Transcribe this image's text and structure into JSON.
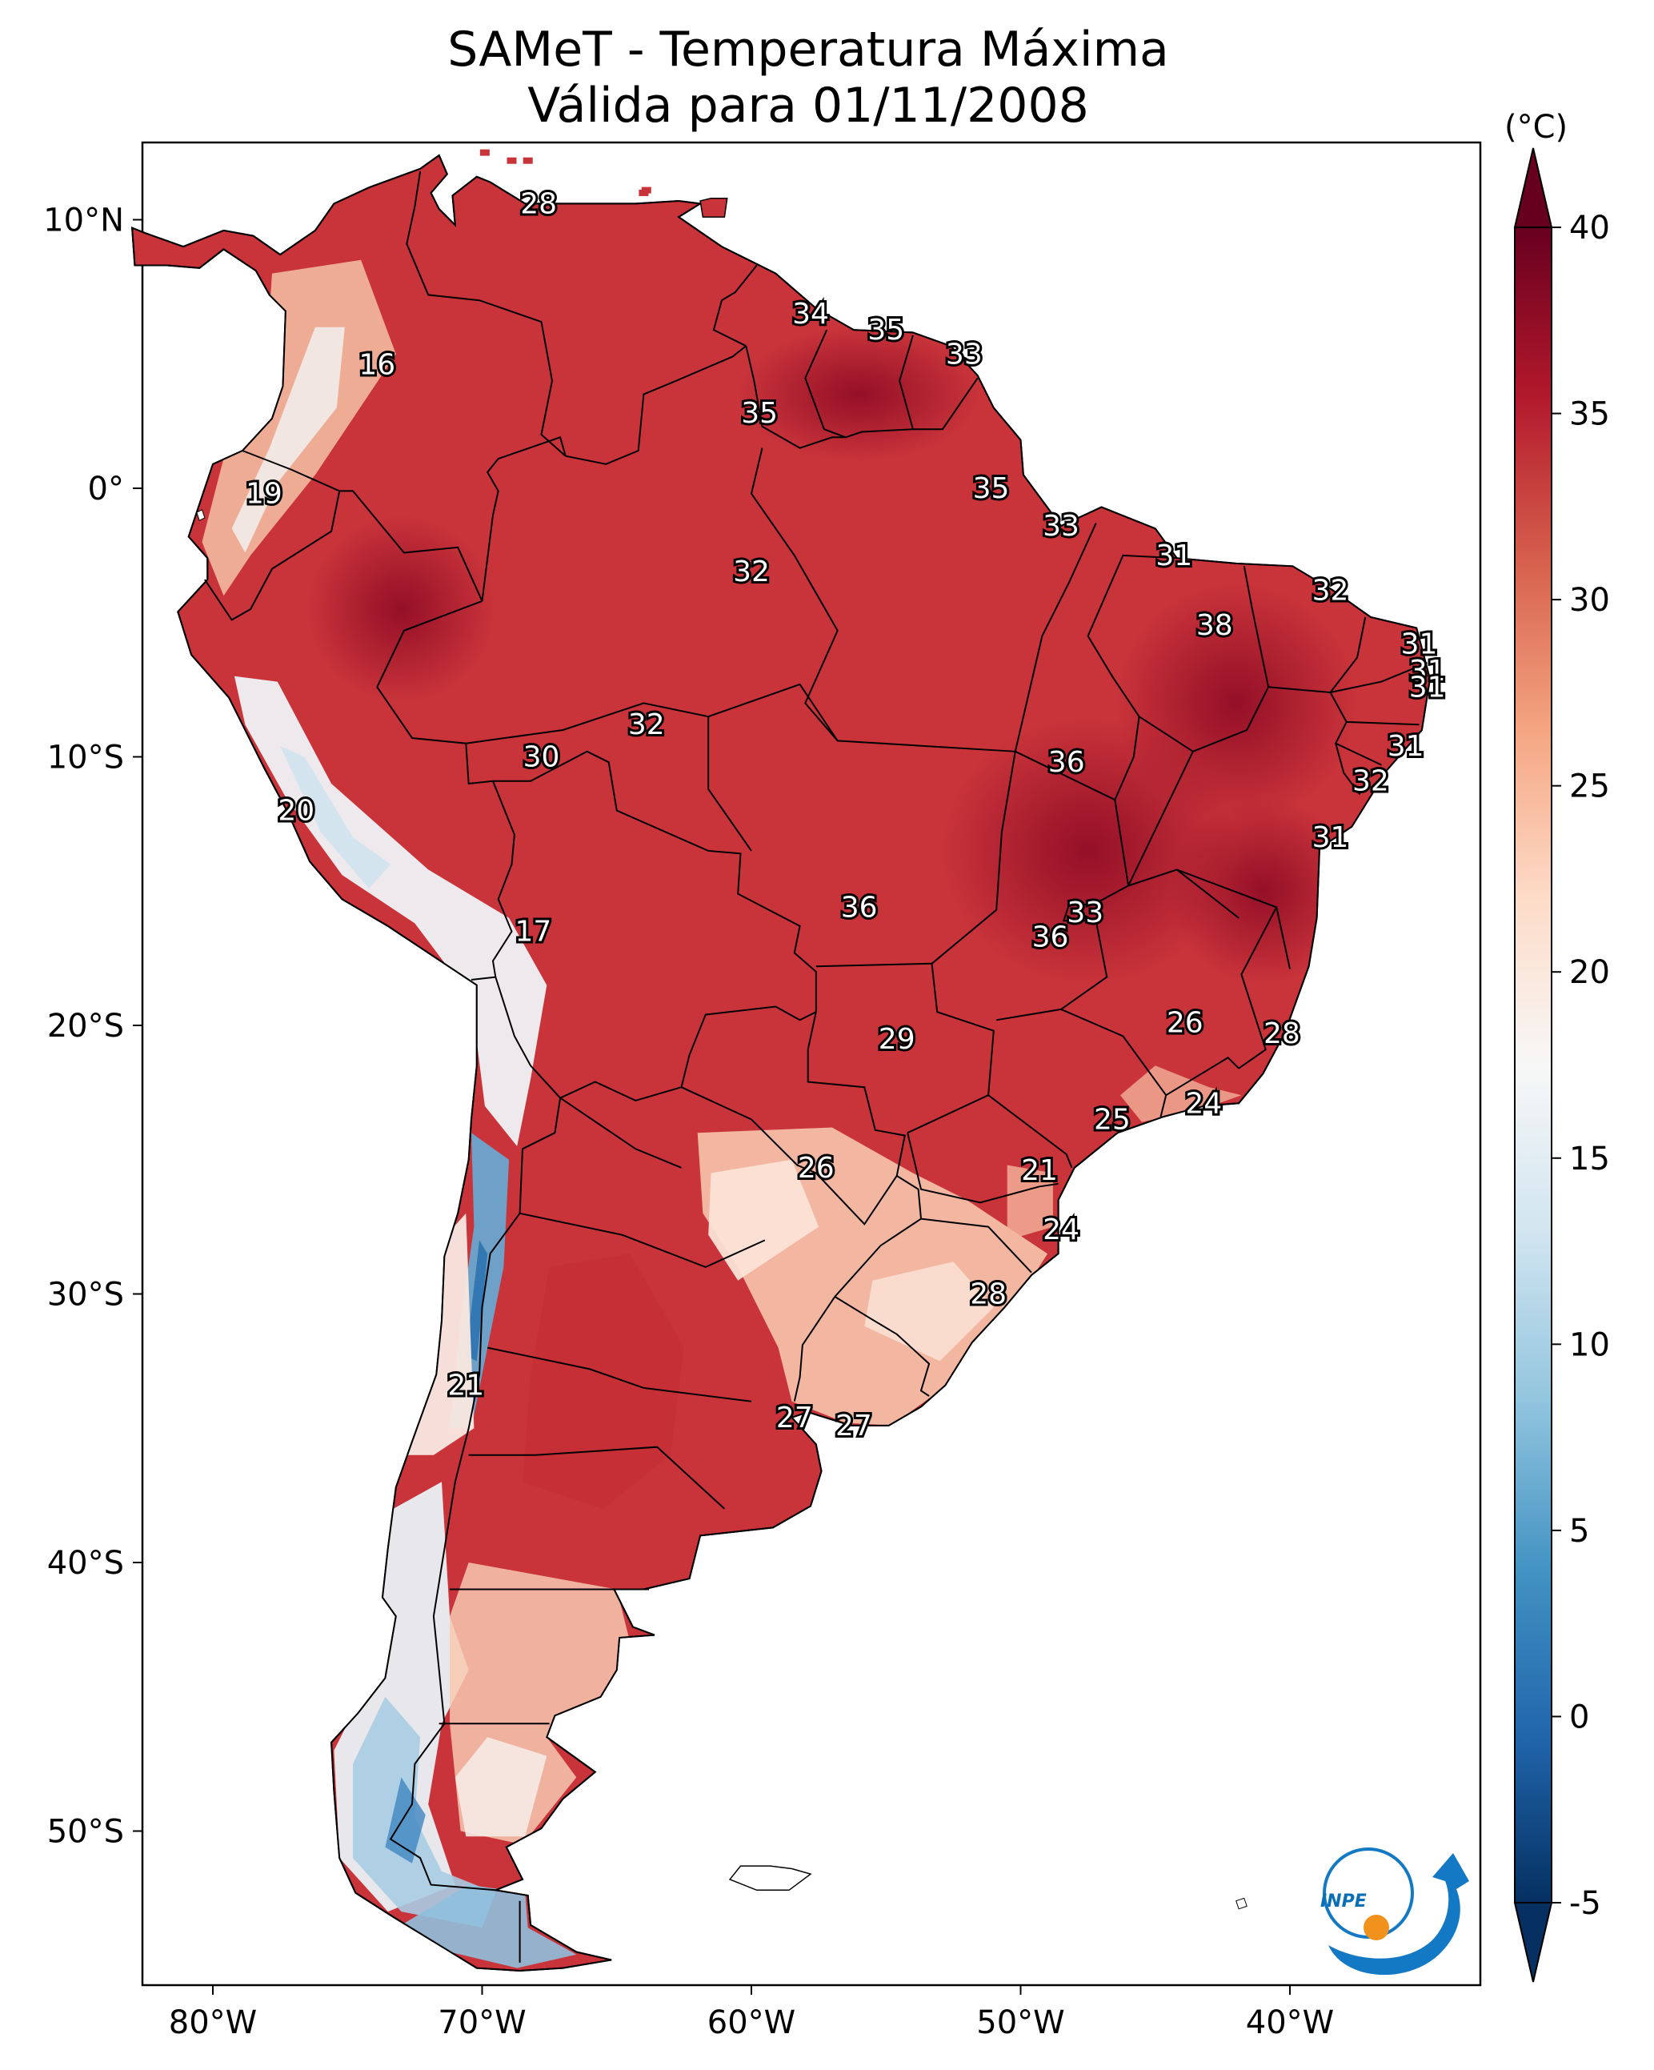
{
  "title": {
    "line1": "SAMeT - Temperatura Máxima",
    "line2": "Válida para 01/11/2008"
  },
  "axes": {
    "x_ticks": [
      {
        "lon": -80,
        "label": "80°W"
      },
      {
        "lon": -70,
        "label": "70°W"
      },
      {
        "lon": -60,
        "label": "60°W"
      },
      {
        "lon": -50,
        "label": "50°W"
      },
      {
        "lon": -40,
        "label": "40°W"
      }
    ],
    "y_ticks": [
      {
        "lat": 10,
        "label": "10°N"
      },
      {
        "lat": 0,
        "label": "0°"
      },
      {
        "lat": -10,
        "label": "10°S"
      },
      {
        "lat": -20,
        "label": "20°S"
      },
      {
        "lat": -30,
        "label": "30°S"
      },
      {
        "lat": -40,
        "label": "40°S"
      },
      {
        "lat": -50,
        "label": "50°S"
      }
    ],
    "lon_range": [
      -83,
      -33
    ],
    "lat_range": [
      -56,
      13
    ]
  },
  "colorbar": {
    "unit": "(°C)",
    "min": -5,
    "max": 40,
    "ticks": [
      {
        "value": 40,
        "label": "40"
      },
      {
        "value": 35,
        "label": "35"
      },
      {
        "value": 30,
        "label": "30"
      },
      {
        "value": 25,
        "label": "25"
      },
      {
        "value": 20,
        "label": "20"
      },
      {
        "value": 15,
        "label": "15"
      },
      {
        "value": 10,
        "label": "10"
      },
      {
        "value": 5,
        "label": "5"
      },
      {
        "value": 0,
        "label": "0"
      },
      {
        "value": -5,
        "label": "-5"
      }
    ],
    "colors": [
      "#053061",
      "#2166ac",
      "#4393c3",
      "#92c5de",
      "#d1e5f0",
      "#f7f7f7",
      "#fddbc7",
      "#f4a582",
      "#d6604d",
      "#b2182b",
      "#67001f"
    ]
  },
  "station_labels": [
    {
      "lon": -67.9,
      "lat": 10.6,
      "value": "28"
    },
    {
      "lon": -57.8,
      "lat": 6.5,
      "value": "34"
    },
    {
      "lon": -55.0,
      "lat": 5.9,
      "value": "35"
    },
    {
      "lon": -52.1,
      "lat": 5.0,
      "value": "33"
    },
    {
      "lon": -73.9,
      "lat": 4.6,
      "value": "16"
    },
    {
      "lon": -59.7,
      "lat": 2.8,
      "value": "35"
    },
    {
      "lon": -51.1,
      "lat": 0.0,
      "value": "35"
    },
    {
      "lon": -78.1,
      "lat": -0.2,
      "value": "19"
    },
    {
      "lon": -48.5,
      "lat": -1.4,
      "value": "33"
    },
    {
      "lon": -44.3,
      "lat": -2.5,
      "value": "31"
    },
    {
      "lon": -60.0,
      "lat": -3.1,
      "value": "32"
    },
    {
      "lon": -38.5,
      "lat": -3.8,
      "value": "32"
    },
    {
      "lon": -42.8,
      "lat": -5.1,
      "value": "38"
    },
    {
      "lon": -35.2,
      "lat": -5.8,
      "value": "31"
    },
    {
      "lon": -34.9,
      "lat": -6.8,
      "value": "31"
    },
    {
      "lon": -34.9,
      "lat": -7.4,
      "value": "31"
    },
    {
      "lon": -67.8,
      "lat": -10.0,
      "value": "30"
    },
    {
      "lon": -63.9,
      "lat": -8.8,
      "value": "32"
    },
    {
      "lon": -48.3,
      "lat": -10.2,
      "value": "36"
    },
    {
      "lon": -35.7,
      "lat": -9.6,
      "value": "31"
    },
    {
      "lon": -37.0,
      "lat": -10.9,
      "value": "32"
    },
    {
      "lon": -76.9,
      "lat": -12.0,
      "value": "20"
    },
    {
      "lon": -38.5,
      "lat": -13.0,
      "value": "31"
    },
    {
      "lon": -56.0,
      "lat": -15.6,
      "value": "36"
    },
    {
      "lon": -47.6,
      "lat": -15.8,
      "value": "33"
    },
    {
      "lon": -48.9,
      "lat": -16.7,
      "value": "36"
    },
    {
      "lon": -68.1,
      "lat": -16.5,
      "value": "17"
    },
    {
      "lon": -43.9,
      "lat": -19.9,
      "value": "26"
    },
    {
      "lon": -40.3,
      "lat": -20.3,
      "value": "28"
    },
    {
      "lon": -54.6,
      "lat": -20.5,
      "value": "29"
    },
    {
      "lon": -43.2,
      "lat": -22.9,
      "value": "24"
    },
    {
      "lon": -46.6,
      "lat": -23.5,
      "value": "25"
    },
    {
      "lon": -57.6,
      "lat": -25.3,
      "value": "26"
    },
    {
      "lon": -49.3,
      "lat": -25.4,
      "value": "21"
    },
    {
      "lon": -48.5,
      "lat": -27.6,
      "value": "24"
    },
    {
      "lon": -51.2,
      "lat": -30.0,
      "value": "28"
    },
    {
      "lon": -70.6,
      "lat": -33.4,
      "value": "21"
    },
    {
      "lon": -58.4,
      "lat": -34.6,
      "value": "27"
    },
    {
      "lon": -56.2,
      "lat": -34.9,
      "value": "27"
    }
  ],
  "logo": {
    "name": "INPE",
    "text": "INPE"
  }
}
